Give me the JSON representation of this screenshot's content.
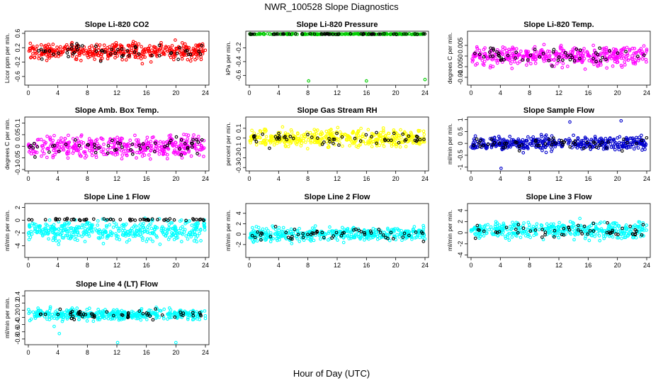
{
  "title": "NWR_100528  Slope Diagnostics",
  "xlabel": "Hour of Day (UTC)",
  "colors": {
    "red": "#ff0000",
    "green": "#00cc00",
    "magenta": "#ff00ff",
    "yellow": "#ffff00",
    "blue": "#0000cc",
    "cyan": "#00ffff",
    "black": "#000000"
  },
  "chart_data": [
    {
      "type": "scatter",
      "title": "Slope Li-820 CO2",
      "ylabel": "Licor ppm per min.",
      "xlim": [
        0,
        24
      ],
      "xticks": [
        0,
        4,
        8,
        12,
        16,
        20,
        24
      ],
      "ylim": [
        -0.8,
        0.62
      ],
      "yticks": [
        -0.6,
        -0.2,
        0.2,
        0.6
      ],
      "color": "#ff0000",
      "center": 0.1,
      "spread": 0.45
    },
    {
      "type": "scatter",
      "title": "Slope Li-820 Pressure",
      "ylabel": "kPa per min.",
      "xlim": [
        0,
        24
      ],
      "xticks": [
        0,
        4,
        8,
        12,
        16,
        20,
        24
      ],
      "ylim": [
        -0.72,
        0.02
      ],
      "yticks": [
        -0.6,
        -0.4,
        -0.2
      ],
      "color": "#00cc00",
      "center": 0.0,
      "spread": 0.015,
      "outliers": [
        [
          8.1,
          -0.68
        ],
        [
          16.0,
          -0.68
        ],
        [
          24.0,
          -0.66
        ]
      ]
    },
    {
      "type": "scatter",
      "title": "Slope Li-820 Temp.",
      "ylabel": "degrees C per min.",
      "xlim": [
        0,
        24
      ],
      "xticks": [
        0,
        4,
        8,
        12,
        16,
        20,
        24
      ],
      "ylim": [
        -0.013,
        0.011
      ],
      "yticks": [
        -0.01,
        -0.005,
        0,
        0.005
      ],
      "color": "#ff00ff",
      "center": 0.0,
      "spread": 0.009
    },
    {
      "type": "scatter",
      "title": "Slope Amb. Box Temp.",
      "ylabel": "degrees C per min.",
      "xlim": [
        0,
        24
      ],
      "xticks": [
        0,
        4,
        8,
        12,
        16,
        20,
        24
      ],
      "ylim": [
        -0.1,
        0.12
      ],
      "yticks": [
        -0.1,
        -0.05,
        0,
        0.05,
        0.1
      ],
      "color": "#ff00ff",
      "center": 0.0,
      "spread": 0.09
    },
    {
      "type": "scatter",
      "title": "Slope Gas Stream RH",
      "ylabel": "percent per min.",
      "xlim": [
        0,
        24
      ],
      "xticks": [
        0,
        4,
        8,
        12,
        16,
        20,
        24
      ],
      "ylim": [
        -0.32,
        0.2
      ],
      "yticks": [
        -0.3,
        -0.2,
        -0.1,
        0,
        0.1
      ],
      "color": "#ffff00",
      "center": 0.0,
      "spread": 0.18
    },
    {
      "type": "scatter",
      "title": "Slope Sample Flow",
      "ylabel": "ml/min per min.",
      "xlim": [
        0,
        24
      ],
      "xticks": [
        0,
        4,
        8,
        12,
        16,
        20,
        24
      ],
      "ylim": [
        -1.1,
        1.05
      ],
      "yticks": [
        -1,
        -0.5,
        0,
        0.5,
        1
      ],
      "color": "#0000cc",
      "center": 0.0,
      "spread": 0.55,
      "outliers": [
        [
          4.1,
          -1.05
        ],
        [
          20.5,
          0.95
        ],
        [
          13.5,
          0.9
        ]
      ]
    },
    {
      "type": "scatter",
      "title": "Slope Line 1 Flow",
      "ylabel": "ml/min per min.",
      "xlim": [
        0,
        24
      ],
      "xticks": [
        0,
        4,
        8,
        12,
        16,
        20,
        24
      ],
      "ylim": [
        -5.6,
        2.4
      ],
      "yticks": [
        -4,
        -2,
        0,
        2
      ],
      "color": "#00ffff",
      "center": -1.6,
      "spread": 3.2,
      "black_center": 0.1,
      "black_spread": 0.35
    },
    {
      "type": "scatter",
      "title": "Slope Line 2 Flow",
      "ylabel": "ml/min per min.",
      "xlim": [
        0,
        24
      ],
      "xticks": [
        0,
        4,
        8,
        12,
        16,
        20,
        24
      ],
      "ylim": [
        -4.2,
        5.6
      ],
      "yticks": [
        -2,
        0,
        2,
        4
      ],
      "color": "#00ffff",
      "center": 0.0,
      "spread": 2.4
    },
    {
      "type": "scatter",
      "title": "Slope Line 3 Flow",
      "ylabel": "ml/min per min.",
      "xlim": [
        0,
        24
      ],
      "xticks": [
        0,
        4,
        8,
        12,
        16,
        20,
        24
      ],
      "ylim": [
        -4.2,
        5.0
      ],
      "yticks": [
        -4,
        -2,
        0,
        2,
        4
      ],
      "color": "#00ffff",
      "center": 0.4,
      "spread": 2.8
    },
    {
      "type": "scatter",
      "title": "Slope Line 4 (LT) Flow",
      "ylabel": "ml/min per min.",
      "xlim": [
        0,
        24
      ],
      "xticks": [
        0,
        4,
        8,
        12,
        16,
        20,
        24
      ],
      "ylim": [
        -0.92,
        0.5
      ],
      "yticks": [
        -0.8,
        -0.6,
        -0.4,
        -0.2,
        0,
        0.2,
        0.4
      ],
      "color": "#00ffff",
      "center": -0.12,
      "spread": 0.3,
      "outliers": [
        [
          4.2,
          -0.65
        ],
        [
          12.1,
          -0.9
        ],
        [
          20.0,
          -0.9
        ],
        [
          3.5,
          -0.45
        ]
      ]
    }
  ]
}
